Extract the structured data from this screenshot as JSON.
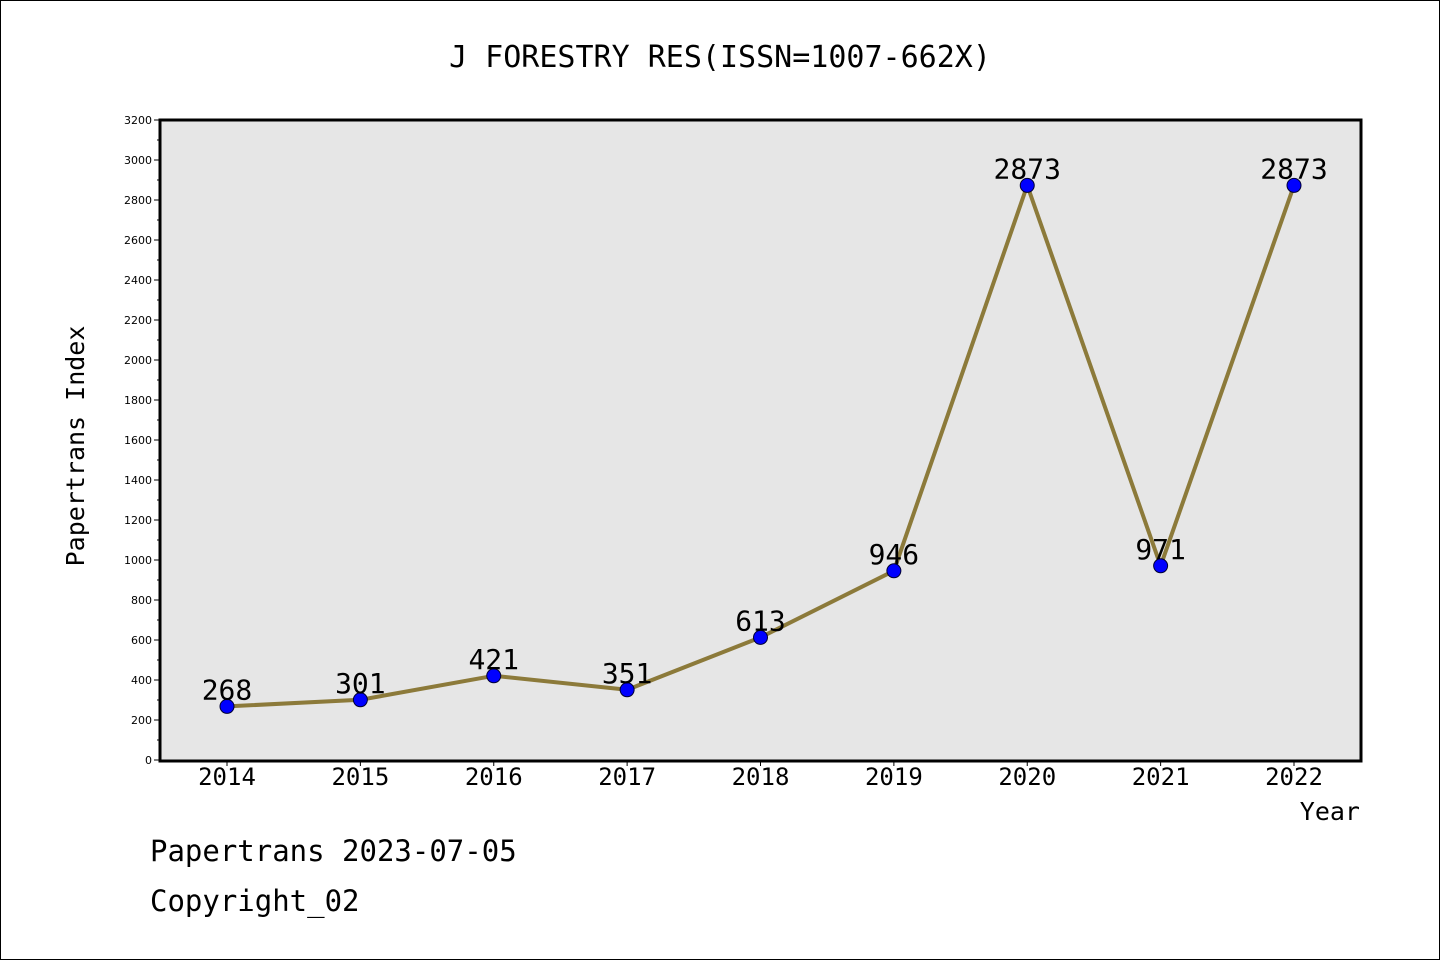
{
  "chart_data": {
    "type": "line",
    "title": "J FORESTRY RES(ISSN=1007-662X)",
    "xlabel": "Year",
    "ylabel": "Papertrans Index",
    "categories": [
      "2014",
      "2015",
      "2016",
      "2017",
      "2018",
      "2019",
      "2020",
      "2021",
      "2022"
    ],
    "values": [
      268,
      301,
      421,
      351,
      613,
      946,
      2873,
      971,
      2873
    ],
    "data_labels": [
      "268",
      "301",
      "421",
      "351",
      "613",
      "946",
      "2873",
      "971",
      "2873"
    ],
    "ylim": [
      0,
      3200
    ],
    "yticks": [
      "0",
      "200",
      "400",
      "600",
      "800",
      "1000",
      "1200",
      "1400",
      "1600",
      "1800",
      "2000",
      "2200",
      "2400",
      "2600",
      "2800",
      "3000",
      "3200"
    ],
    "grid": false,
    "legend": "none",
    "colors": {
      "line": "#8c7a3a",
      "marker": "#0000ff",
      "plot_background": "#e6e6e6"
    }
  },
  "footer": {
    "line1": "Papertrans 2023-07-05",
    "line2": "Copyright_02"
  }
}
